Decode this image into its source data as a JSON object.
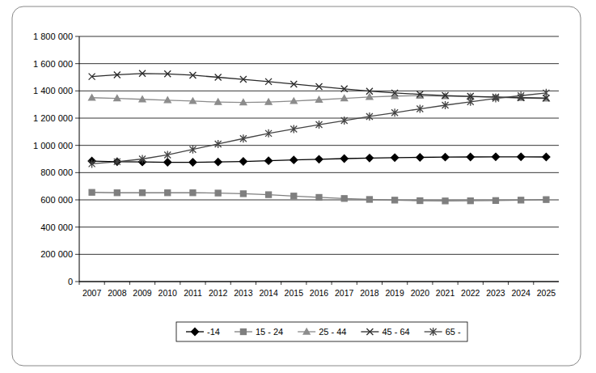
{
  "chart_data": {
    "type": "line",
    "categories": [
      "2007",
      "2008",
      "2009",
      "2010",
      "2011",
      "2012",
      "2013",
      "2014",
      "2015",
      "2016",
      "2017",
      "2018",
      "2019",
      "2020",
      "2021",
      "2022",
      "2023",
      "2024",
      "2025"
    ],
    "series": [
      {
        "name": "-14",
        "color": "#000000",
        "marker": "diamond",
        "values": [
          885000,
          880000,
          878000,
          876000,
          876000,
          878000,
          882000,
          887000,
          893000,
          898000,
          903000,
          907000,
          910000,
          912000,
          914000,
          915000,
          916000,
          916000,
          915000
        ]
      },
      {
        "name": "15 - 24",
        "color": "#7f7f7f",
        "marker": "square",
        "values": [
          655000,
          652000,
          652000,
          652000,
          652000,
          650000,
          645000,
          638000,
          628000,
          618000,
          610000,
          603000,
          598000,
          594000,
          592000,
          593000,
          595000,
          598000,
          602000
        ]
      },
      {
        "name": "25 - 44",
        "color": "#8c8c8c",
        "marker": "triangle",
        "values": [
          1350000,
          1345000,
          1338000,
          1332000,
          1325000,
          1318000,
          1315000,
          1318000,
          1325000,
          1335000,
          1345000,
          1355000,
          1362000,
          1365000,
          1362000,
          1358000,
          1353000,
          1348000,
          1343000
        ]
      },
      {
        "name": "45 - 64",
        "color": "#2b2b2b",
        "marker": "x",
        "values": [
          1505000,
          1518000,
          1528000,
          1525000,
          1515000,
          1500000,
          1485000,
          1468000,
          1450000,
          1432000,
          1415000,
          1398000,
          1385000,
          1375000,
          1366000,
          1360000,
          1355000,
          1350000,
          1347000
        ]
      },
      {
        "name": "65 -",
        "color": "#444444",
        "marker": "star",
        "values": [
          865000,
          880000,
          900000,
          930000,
          970000,
          1010000,
          1050000,
          1088000,
          1120000,
          1152000,
          1182000,
          1212000,
          1240000,
          1268000,
          1295000,
          1320000,
          1345000,
          1365000,
          1385000
        ]
      }
    ],
    "ylim": [
      0,
      1800000
    ],
    "yticks": [
      0,
      {
        "value": 200000,
        "label": "200 000"
      },
      {
        "value": 400000,
        "label": "400 000"
      },
      {
        "value": 600000,
        "label": "600 000"
      },
      {
        "value": 800000,
        "label": "800 000"
      },
      {
        "value": 1000000,
        "label": "1 000 000"
      },
      {
        "value": 1200000,
        "label": "1 200 000"
      },
      {
        "value": 1400000,
        "label": "1 400 000"
      },
      {
        "value": 1600000,
        "label": "1 600 000"
      },
      {
        "value": 1800000,
        "label": "1 800 000"
      }
    ],
    "grid": true,
    "legend": "bottom"
  }
}
